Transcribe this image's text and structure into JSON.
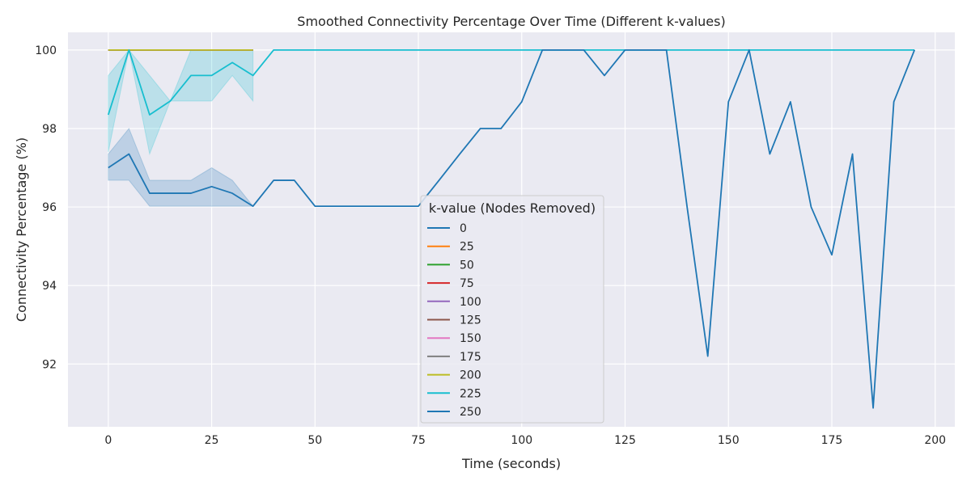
{
  "chart_data": {
    "type": "line",
    "title": "Smoothed Connectivity Percentage Over Time (Different k-values)",
    "xlabel": "Time (seconds)",
    "ylabel": "Connectivity Percentage (%)",
    "xlim": [
      -9.75,
      204.75
    ],
    "ylim": [
      90.4,
      100.45
    ],
    "xticks": [
      0,
      25,
      50,
      75,
      100,
      125,
      150,
      175,
      200
    ],
    "yticks": [
      92,
      94,
      96,
      98,
      100
    ],
    "grid": true,
    "legend": {
      "title": "k-value (Nodes Removed)",
      "placement": "lower-center"
    },
    "series": [
      {
        "name": "0",
        "color": "#1f77b4",
        "x": [],
        "y": []
      },
      {
        "name": "25",
        "color": "#ff7f0e",
        "x": [
          0,
          5,
          10,
          15,
          20,
          25,
          30,
          35
        ],
        "y": [
          100,
          100,
          100,
          100,
          100,
          100,
          100,
          100
        ]
      },
      {
        "name": "50",
        "color": "#2ca02c",
        "x": [
          0,
          5,
          10,
          15,
          20,
          25,
          30,
          35
        ],
        "y": [
          100,
          100,
          100,
          100,
          100,
          100,
          100,
          100
        ]
      },
      {
        "name": "75",
        "color": "#d62728",
        "x": [
          0,
          5,
          10,
          15,
          20,
          25,
          30,
          35
        ],
        "y": [
          100,
          100,
          100,
          100,
          100,
          100,
          100,
          100
        ]
      },
      {
        "name": "100",
        "color": "#9467bd",
        "x": [
          0,
          5,
          10,
          15,
          20,
          25,
          30,
          35
        ],
        "y": [
          100,
          100,
          100,
          100,
          100,
          100,
          100,
          100
        ]
      },
      {
        "name": "125",
        "color": "#8c564b",
        "x": [
          0,
          5,
          10,
          15,
          20,
          25,
          30,
          35
        ],
        "y": [
          100,
          100,
          100,
          100,
          100,
          100,
          100,
          100
        ]
      },
      {
        "name": "150",
        "color": "#e377c2",
        "x": [
          0,
          5,
          10,
          15,
          20,
          25,
          30,
          35
        ],
        "y": [
          100,
          100,
          100,
          100,
          100,
          100,
          100,
          100
        ]
      },
      {
        "name": "175",
        "color": "#7f7f7f",
        "x": [
          0,
          5,
          10,
          15,
          20,
          25,
          30,
          35
        ],
        "y": [
          100,
          100,
          100,
          100,
          100,
          100,
          100,
          100
        ]
      },
      {
        "name": "200",
        "color": "#bcbd22",
        "x": [
          0,
          5,
          10,
          15,
          20,
          25,
          30,
          35
        ],
        "y": [
          100,
          100,
          100,
          100,
          100,
          100,
          100,
          100
        ]
      },
      {
        "name": "225",
        "color": "#17becf",
        "x": [
          0,
          5,
          10,
          15,
          20,
          25,
          30,
          35,
          40,
          45,
          50,
          55,
          60,
          65,
          70,
          75,
          80,
          85,
          90,
          95,
          100,
          105,
          110,
          115,
          120,
          125,
          130,
          135,
          140,
          145,
          150,
          155,
          160,
          165,
          170,
          175,
          180,
          185,
          190,
          195
        ],
        "y": [
          98.35,
          100,
          98.35,
          98.7,
          99.35,
          99.35,
          99.68,
          99.35,
          100,
          100,
          100,
          100,
          100,
          100,
          100,
          100,
          100,
          100,
          100,
          100,
          100,
          100,
          100,
          100,
          100,
          100,
          100,
          100,
          100,
          100,
          100,
          100,
          100,
          100,
          100,
          100,
          100,
          100,
          100,
          100
        ],
        "band": {
          "x": [
            0,
            5,
            10,
            15,
            20,
            25,
            30,
            35
          ],
          "lower": [
            97.4,
            100,
            97.35,
            98.7,
            98.7,
            98.7,
            99.35,
            98.7
          ],
          "upper": [
            99.35,
            100,
            99.35,
            98.7,
            100,
            100,
            100,
            100
          ]
        }
      },
      {
        "name": "250",
        "color": "#1f77b4",
        "x": [
          0,
          5,
          10,
          15,
          20,
          25,
          30,
          35,
          40,
          45,
          50,
          55,
          60,
          65,
          70,
          75,
          80,
          85,
          90,
          95,
          100,
          105,
          110,
          115,
          120,
          125,
          130,
          135,
          140,
          145,
          150,
          155,
          160,
          165,
          170,
          175,
          180,
          185,
          190,
          195
        ],
        "y": [
          97.0,
          97.35,
          96.35,
          96.35,
          96.35,
          96.52,
          96.35,
          96.02,
          96.68,
          96.68,
          96.02,
          96.02,
          96.02,
          96.02,
          96.02,
          96.02,
          96.68,
          97.35,
          98.0,
          98.0,
          98.68,
          100,
          100,
          100,
          99.35,
          100,
          100,
          100,
          96.0,
          92.2,
          98.68,
          100,
          97.35,
          98.68,
          96.0,
          94.78,
          97.35,
          90.88,
          98.68,
          100
        ],
        "band": {
          "x": [
            0,
            5,
            10,
            15,
            20,
            25,
            30,
            35
          ],
          "lower": [
            96.68,
            96.68,
            96.02,
            96.02,
            96.02,
            96.02,
            96.02,
            96.02
          ],
          "upper": [
            97.35,
            98.0,
            96.68,
            96.68,
            96.68,
            97.0,
            96.68,
            96.02
          ]
        }
      }
    ]
  }
}
